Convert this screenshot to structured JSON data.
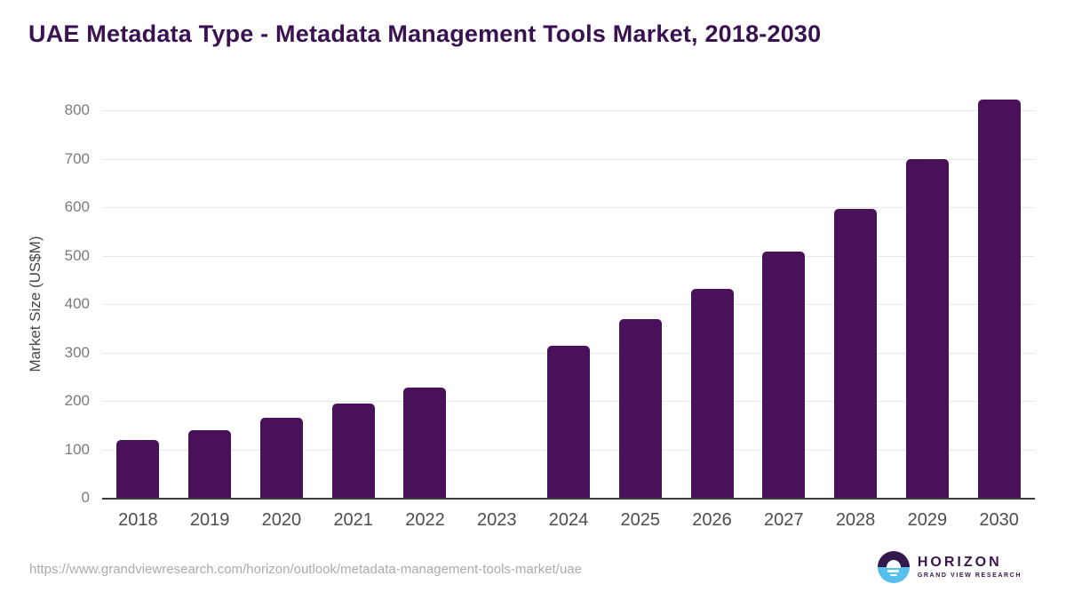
{
  "header": {
    "title": "UAE Metadata Type - Metadata Management Tools Market, 2018-2030"
  },
  "chart_data": {
    "type": "bar",
    "title": "UAE Metadata Type - Metadata Management Tools Market, 2018-2030",
    "categories": [
      "2018",
      "2019",
      "2020",
      "2021",
      "2022",
      "2023",
      "2024",
      "2025",
      "2026",
      "2027",
      "2028",
      "2029",
      "2030"
    ],
    "values": [
      120,
      140,
      166,
      194,
      228,
      null,
      314,
      368,
      432,
      508,
      597,
      700,
      822
    ],
    "missing_bars": [
      "2023"
    ],
    "xlabel": "",
    "ylabel": "Market Size (US$M)",
    "units": "US$M",
    "ylim": [
      0,
      800
    ],
    "yticks": [
      0,
      100,
      200,
      300,
      400,
      500,
      600,
      700,
      800
    ],
    "grid": "horizontal-only",
    "legend": "none",
    "bar_color": "#48115a",
    "bar_corner_radius_px": 5
  },
  "colors": {
    "bar": "#48115a",
    "title_text": "#3a1151",
    "grid_line": "#e9e9eb",
    "axis_line": "#3a3b3d",
    "y_tick_text": "#7a7b7e",
    "x_tick_text": "#4c4d4f",
    "axis_title_text": "#46474b",
    "url_text": "#aaabad",
    "logo_purple": "#33184e",
    "logo_blue": "#55c0ee",
    "logo_text": "#3b1252"
  },
  "footer": {
    "source_url": "https://www.grandviewresearch.com/horizon/outlook/metadata-management-tools-market/uae",
    "logo": {
      "wordmark": "HORIZON",
      "tagline": "GRAND VIEW RESEARCH",
      "icon": "horizon-sunrise-icon"
    }
  }
}
